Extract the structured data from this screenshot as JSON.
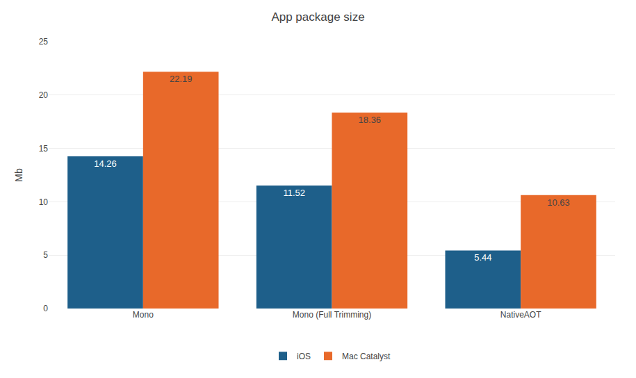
{
  "chart_data": {
    "type": "bar",
    "title": "App package size",
    "categories": [
      "Mono",
      "Mono (Full Trimming)",
      "NativeAOT"
    ],
    "series": [
      {
        "name": "iOS",
        "color": "#1e5f8a",
        "values": [
          14.26,
          11.52,
          5.44
        ]
      },
      {
        "name": "Mac Catalyst",
        "color": "#e8692a",
        "values": [
          22.19,
          18.36,
          10.63
        ]
      }
    ],
    "ylabel": "Mb",
    "ylim": [
      0,
      25
    ],
    "yticks": [
      0,
      5,
      10,
      15,
      20,
      25
    ],
    "grid": true,
    "legend": "bottom",
    "data_labels": true
  }
}
